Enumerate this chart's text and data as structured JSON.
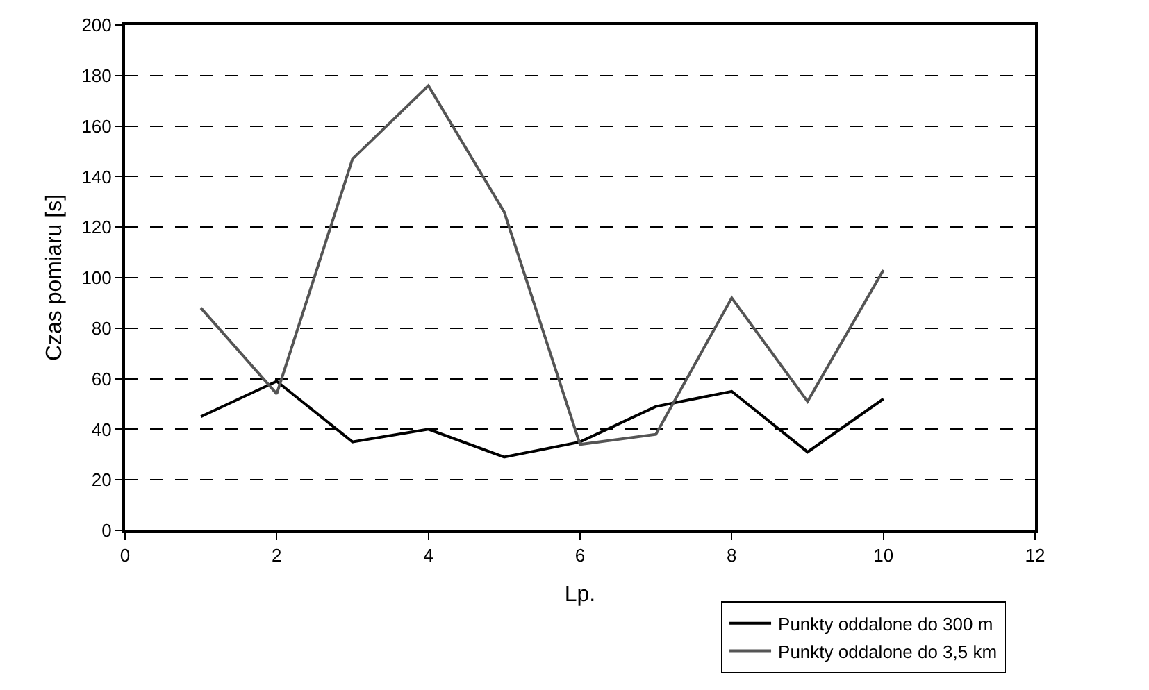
{
  "chart_data": {
    "type": "line",
    "xlabel": "Lp.",
    "ylabel": "Czas pomiaru [s]",
    "x": [
      1,
      2,
      3,
      4,
      5,
      6,
      7,
      8,
      9,
      10
    ],
    "series": [
      {
        "name": "Punkty oddalone do 300 m",
        "color": "#000000",
        "values": [
          45,
          59,
          35,
          40,
          29,
          35,
          49,
          55,
          31,
          52
        ]
      },
      {
        "name": "Punkty oddalone do 3,5 km",
        "color": "#555555",
        "values": [
          88,
          54,
          147,
          176,
          126,
          34,
          38,
          92,
          51,
          103
        ]
      }
    ],
    "xlim": [
      0,
      12
    ],
    "xticks": [
      0,
      2,
      4,
      6,
      8,
      10,
      12
    ],
    "ylim": [
      0,
      200
    ],
    "yticks": [
      0,
      20,
      40,
      60,
      80,
      100,
      120,
      140,
      160,
      180,
      200
    ],
    "grid": "y",
    "line_style": "solid",
    "marker": "none",
    "legend": "bottom right"
  }
}
